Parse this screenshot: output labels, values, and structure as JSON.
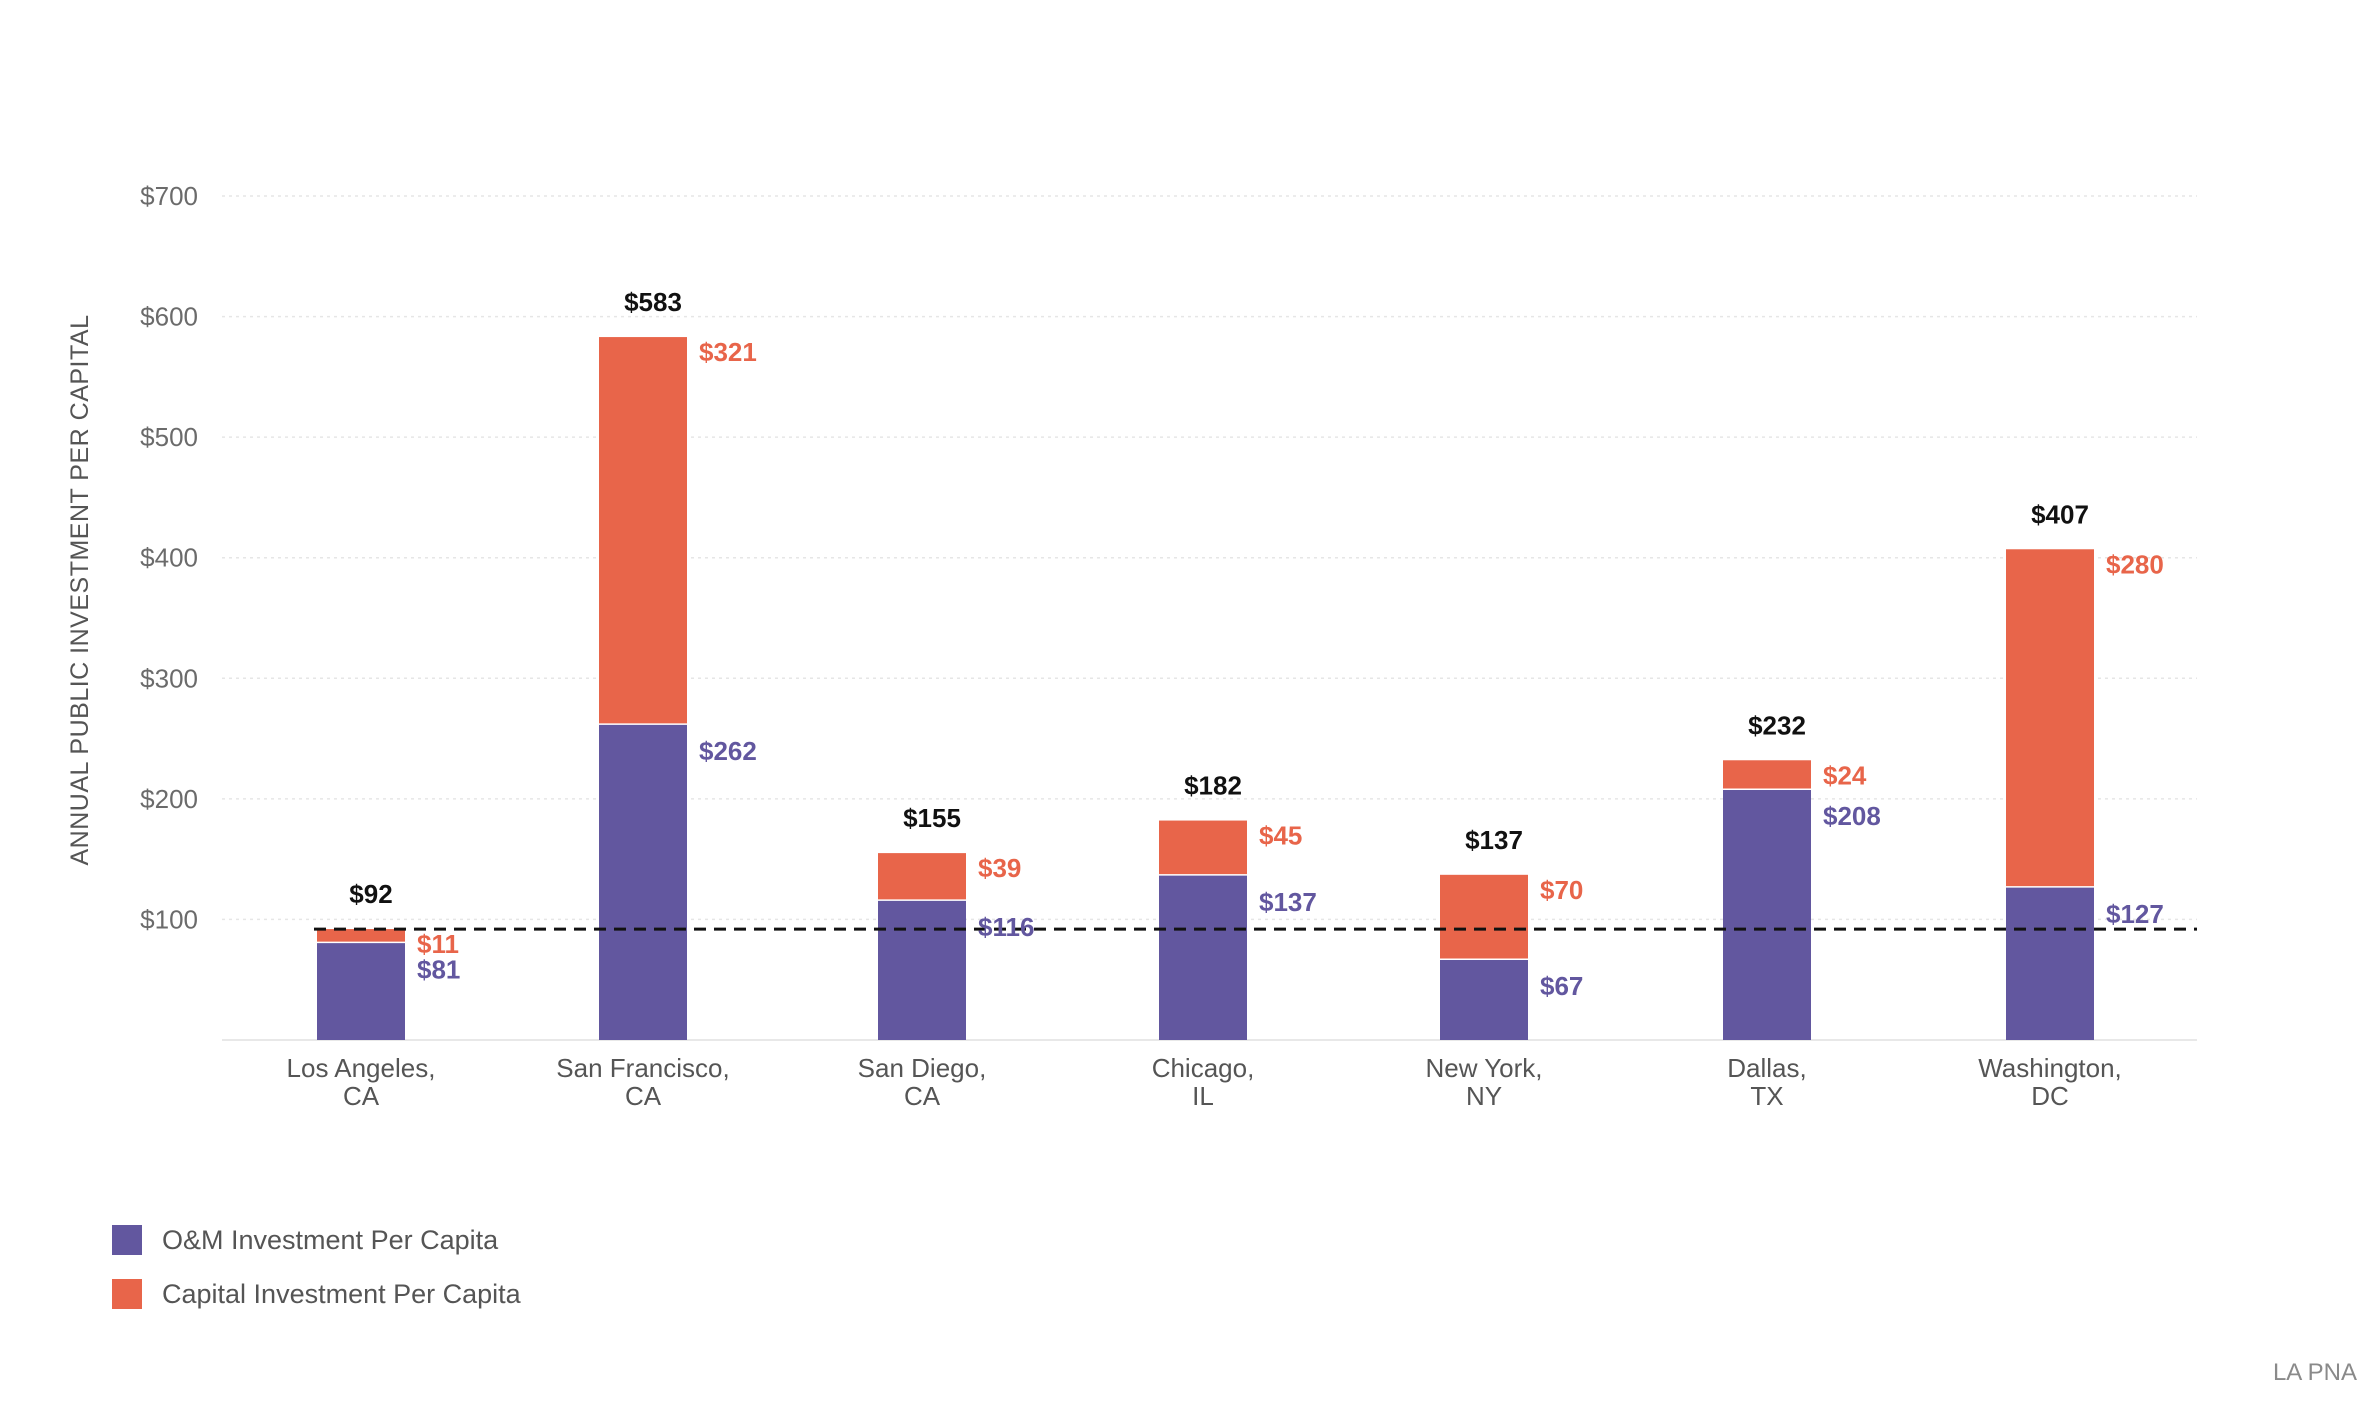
{
  "chart_data": {
    "type": "bar",
    "stacked": true,
    "title": "",
    "xlabel": "",
    "ylabel": "ANNUAL PUBLIC INVESTMENT PER CAPITAL",
    "ylim": [
      0,
      700
    ],
    "yticks": [
      100,
      200,
      300,
      400,
      500,
      600,
      700
    ],
    "ytick_labels": [
      "$100",
      "$200",
      "$300",
      "$400",
      "$500",
      "$600",
      "$700"
    ],
    "grid": true,
    "legend_position": "bottom-left",
    "categories": [
      [
        "Los Angeles,",
        "CA"
      ],
      [
        "San Francisco,",
        "CA"
      ],
      [
        "San Diego,",
        "CA"
      ],
      [
        "Chicago,",
        "IL"
      ],
      [
        "New York,",
        "NY"
      ],
      [
        "Dallas,",
        "TX"
      ],
      [
        "Washington,",
        "DC"
      ]
    ],
    "series": [
      {
        "name": "O&M Investment Per Capita",
        "color": "#62579f",
        "values": [
          81,
          262,
          116,
          137,
          67,
          208,
          127
        ],
        "labels": [
          "$81",
          "$262",
          "$116",
          "$137",
          "$67",
          "$208",
          "$127"
        ]
      },
      {
        "name": "Capital Investment Per Capita",
        "color": "#e8654a",
        "values": [
          11,
          321,
          39,
          45,
          70,
          24,
          280
        ],
        "labels": [
          "$11",
          "$321",
          "$39",
          "$45",
          "$70",
          "$24",
          "$280"
        ]
      }
    ],
    "totals": [
      92,
      583,
      155,
      182,
      137,
      232,
      407
    ],
    "total_labels": [
      "$92",
      "$583",
      "$155",
      "$182",
      "$137",
      "$232",
      "$407"
    ],
    "reference_line": {
      "value": 92,
      "style": "dashed",
      "color": "#111111"
    }
  },
  "source": "LA PNA"
}
